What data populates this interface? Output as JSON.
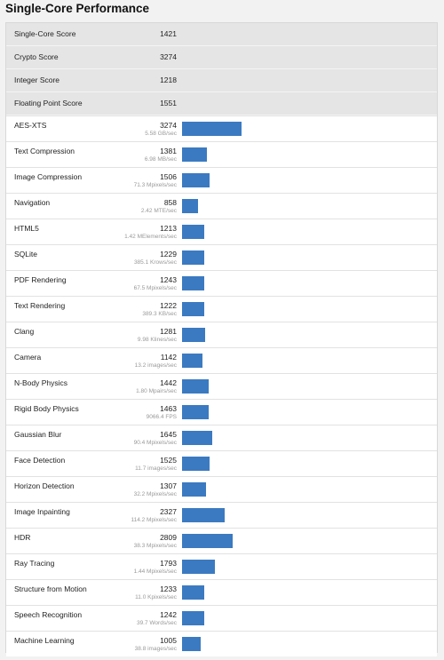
{
  "page": {
    "title": "Single-Core Performance"
  },
  "summary": [
    {
      "label": "Single-Core Score",
      "score": "1421"
    },
    {
      "label": "Crypto Score",
      "score": "3274"
    },
    {
      "label": "Integer Score",
      "score": "1218"
    },
    {
      "label": "Floating Point Score",
      "score": "1551"
    }
  ],
  "benchmarks": [
    {
      "label": "AES-XTS",
      "score": "3274",
      "value": 3274,
      "sub": "5.58 GB/sec"
    },
    {
      "label": "Text Compression",
      "score": "1381",
      "value": 1381,
      "sub": "6.98 MB/sec"
    },
    {
      "label": "Image Compression",
      "score": "1506",
      "value": 1506,
      "sub": "71.3 Mpixels/sec"
    },
    {
      "label": "Navigation",
      "score": "858",
      "value": 858,
      "sub": "2.42 MTE/sec"
    },
    {
      "label": "HTML5",
      "score": "1213",
      "value": 1213,
      "sub": "1.42 MElements/sec"
    },
    {
      "label": "SQLite",
      "score": "1229",
      "value": 1229,
      "sub": "385.1 Krows/sec"
    },
    {
      "label": "PDF Rendering",
      "score": "1243",
      "value": 1243,
      "sub": "67.5 Mpixels/sec"
    },
    {
      "label": "Text Rendering",
      "score": "1222",
      "value": 1222,
      "sub": "389.3 KB/sec"
    },
    {
      "label": "Clang",
      "score": "1281",
      "value": 1281,
      "sub": "9.98 Klines/sec"
    },
    {
      "label": "Camera",
      "score": "1142",
      "value": 1142,
      "sub": "13.2 images/sec"
    },
    {
      "label": "N-Body Physics",
      "score": "1442",
      "value": 1442,
      "sub": "1.80 Mpairs/sec"
    },
    {
      "label": "Rigid Body Physics",
      "score": "1463",
      "value": 1463,
      "sub": "9066.4 FPS"
    },
    {
      "label": "Gaussian Blur",
      "score": "1645",
      "value": 1645,
      "sub": "90.4 Mpixels/sec"
    },
    {
      "label": "Face Detection",
      "score": "1525",
      "value": 1525,
      "sub": "11.7 images/sec"
    },
    {
      "label": "Horizon Detection",
      "score": "1307",
      "value": 1307,
      "sub": "32.2 Mpixels/sec"
    },
    {
      "label": "Image Inpainting",
      "score": "2327",
      "value": 2327,
      "sub": "114.2 Mpixels/sec"
    },
    {
      "label": "HDR",
      "score": "2809",
      "value": 2809,
      "sub": "38.3 Mpixels/sec"
    },
    {
      "label": "Ray Tracing",
      "score": "1793",
      "value": 1793,
      "sub": "1.44 Mpixels/sec"
    },
    {
      "label": "Structure from Motion",
      "score": "1233",
      "value": 1233,
      "sub": "11.0 Kpixels/sec"
    },
    {
      "label": "Speech Recognition",
      "score": "1242",
      "value": 1242,
      "sub": "39.7 Words/sec"
    },
    {
      "label": "Machine Learning",
      "score": "1005",
      "value": 1005,
      "sub": "38.8 images/sec"
    }
  ],
  "colors": {
    "bar": "#3b7ac1",
    "summary_bg": "#e5e5e5",
    "subtext": "#999999"
  }
}
